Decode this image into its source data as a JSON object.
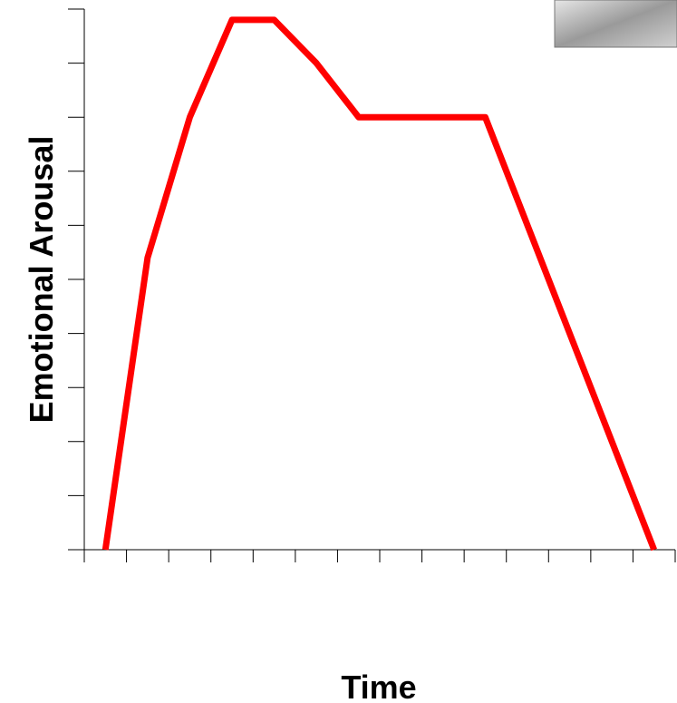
{
  "chart_data": {
    "type": "line",
    "x": [
      0.5,
      1.5,
      2.5,
      3.5,
      4.5,
      5.5,
      6.5,
      9.5,
      13.5
    ],
    "series": [
      {
        "color": "#ff0000",
        "values": [
          0,
          5.4,
          8,
          9.8,
          9.8,
          9,
          8,
          8,
          0
        ]
      }
    ],
    "xlabel": "Time",
    "ylabel": "Emotional Arousal",
    "xlim": [
      0,
      14
    ],
    "xticks": [
      0,
      1,
      2,
      3,
      4,
      5,
      6,
      7,
      8,
      9,
      10,
      11,
      12,
      13,
      14
    ],
    "ylim": [
      0,
      10
    ],
    "yticks": [
      0,
      1,
      2,
      3,
      4,
      5,
      6,
      7,
      8,
      9,
      10
    ]
  }
}
